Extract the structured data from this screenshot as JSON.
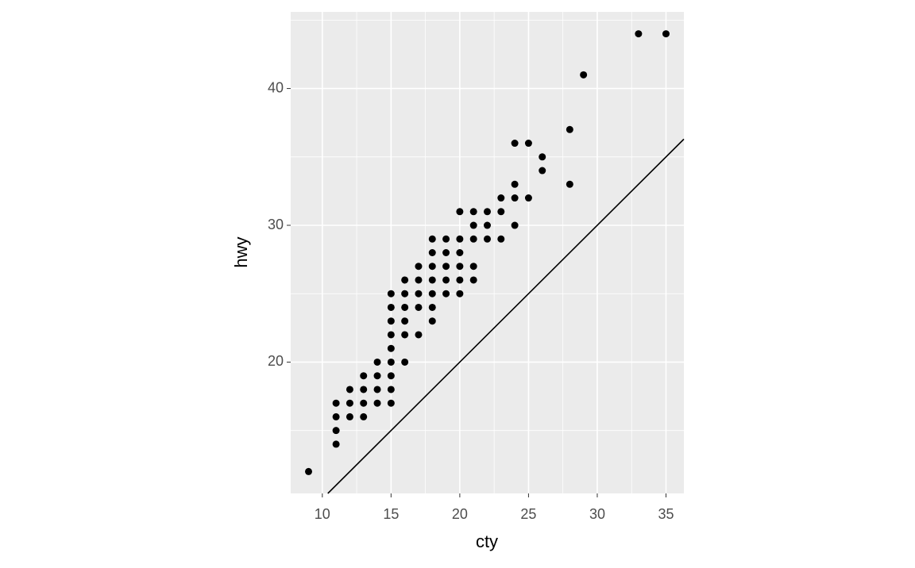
{
  "chart_data": {
    "type": "scatter",
    "x_label": "cty",
    "y_label": "hwy",
    "x": [
      9,
      11,
      11,
      11,
      11,
      12,
      12,
      12,
      13,
      13,
      13,
      13,
      14,
      14,
      14,
      14,
      15,
      15,
      15,
      15,
      15,
      15,
      15,
      15,
      15,
      16,
      16,
      16,
      16,
      16,
      16,
      17,
      17,
      17,
      17,
      17,
      18,
      18,
      18,
      18,
      18,
      18,
      18,
      19,
      19,
      19,
      19,
      19,
      20,
      20,
      20,
      20,
      20,
      20,
      21,
      21,
      21,
      21,
      21,
      22,
      22,
      22,
      23,
      23,
      23,
      24,
      24,
      24,
      24,
      25,
      25,
      26,
      26,
      28,
      28,
      29,
      33,
      35
    ],
    "y": [
      12,
      14,
      15,
      16,
      17,
      16,
      17,
      18,
      16,
      17,
      18,
      19,
      17,
      18,
      19,
      20,
      17,
      18,
      19,
      20,
      21,
      22,
      23,
      24,
      25,
      20,
      22,
      23,
      24,
      25,
      26,
      22,
      24,
      25,
      26,
      27,
      23,
      24,
      25,
      26,
      27,
      28,
      29,
      25,
      26,
      27,
      28,
      29,
      25,
      26,
      27,
      28,
      29,
      31,
      26,
      27,
      29,
      30,
      31,
      29,
      30,
      31,
      29,
      31,
      32,
      30,
      32,
      33,
      36,
      32,
      36,
      34,
      35,
      33,
      37,
      41,
      44,
      44
    ],
    "color": "#000000",
    "xlim": [
      7.7,
      36.3
    ],
    "ylim": [
      10.4,
      45.6
    ],
    "xticks": [
      10,
      15,
      20,
      25,
      30,
      35
    ],
    "yticks": [
      20,
      30,
      40
    ],
    "xminor": [
      12.5,
      17.5,
      22.5,
      27.5,
      32.5
    ],
    "yminor": [
      15,
      25,
      35,
      45
    ],
    "grid": true,
    "abline": {
      "intercept": 0,
      "slope": 1,
      "color": "#000000"
    }
  }
}
